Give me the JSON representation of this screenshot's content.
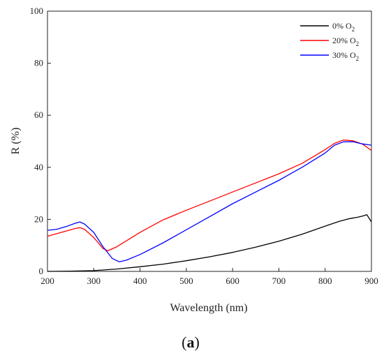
{
  "chart_data": {
    "type": "line",
    "xlabel": "Wavelength (nm)",
    "ylabel": "R (%)",
    "xlim": [
      200,
      900
    ],
    "ylim": [
      0,
      100
    ],
    "xticks": [
      "200",
      "300",
      "400",
      "500",
      "600",
      "700",
      "800",
      "900"
    ],
    "yticks": [
      "0",
      "20",
      "40",
      "60",
      "80",
      "100"
    ],
    "grid": false,
    "legend_position": "top-right",
    "series": [
      {
        "name": "0% O",
        "subscript": "2",
        "color": "#000000",
        "x": [
          200,
          250,
          300,
          350,
          400,
          450,
          500,
          550,
          600,
          650,
          700,
          750,
          800,
          830,
          850,
          870,
          880,
          890,
          900
        ],
        "y": [
          0.0,
          0.1,
          0.3,
          0.9,
          1.8,
          2.8,
          4.1,
          5.6,
          7.3,
          9.3,
          11.6,
          14.3,
          17.4,
          19.2,
          20.2,
          20.8,
          21.2,
          21.8,
          19.0
        ]
      },
      {
        "name": "20% O",
        "subscript": "2",
        "color": "#ff0000",
        "x": [
          200,
          220,
          240,
          260,
          270,
          280,
          300,
          320,
          330,
          350,
          400,
          450,
          500,
          550,
          600,
          650,
          700,
          750,
          800,
          820,
          840,
          860,
          880,
          900
        ],
        "y": [
          13.5,
          14.5,
          15.5,
          16.5,
          16.8,
          16.2,
          13.0,
          8.8,
          7.9,
          9.5,
          15.0,
          19.8,
          23.5,
          27.0,
          30.5,
          34.0,
          37.5,
          41.5,
          46.8,
          49.2,
          50.5,
          50.2,
          49.0,
          46.5
        ]
      },
      {
        "name": "30% O",
        "subscript": "2",
        "color": "#0000ff",
        "x": [
          200,
          220,
          240,
          260,
          270,
          280,
          300,
          320,
          340,
          355,
          370,
          400,
          450,
          500,
          550,
          600,
          650,
          700,
          750,
          800,
          820,
          840,
          860,
          880,
          900
        ],
        "y": [
          15.8,
          16.2,
          17.2,
          18.5,
          19.0,
          18.2,
          15.0,
          9.5,
          5.0,
          3.7,
          4.3,
          6.5,
          11.0,
          16.0,
          21.0,
          26.0,
          30.5,
          35.0,
          40.0,
          45.5,
          48.5,
          49.8,
          49.8,
          49.0,
          48.5
        ]
      }
    ]
  },
  "caption": {
    "open": "(",
    "letter": "a",
    "close": ")"
  }
}
